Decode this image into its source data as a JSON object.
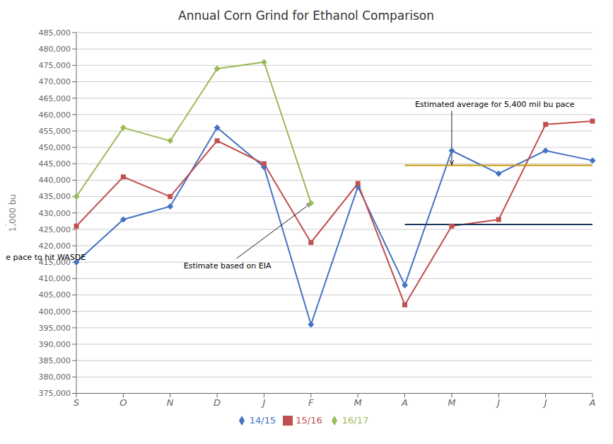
{
  "chart_data": {
    "type": "line",
    "title": "Annual Corn Grind for Ethanol Comparison",
    "y_label": "1,000 bu",
    "categories": [
      "S",
      "O",
      "N",
      "D",
      "J",
      "F",
      "M",
      "A",
      "M",
      "J",
      "J",
      "A"
    ],
    "series": [
      {
        "name": "14/15",
        "color": "#4472C4",
        "marker": "diamond",
        "values": [
          415000,
          428000,
          432000,
          456000,
          444000,
          396000,
          438000,
          408000,
          449000,
          442000,
          449000,
          446000
        ]
      },
      {
        "name": "15/16",
        "color": "#C0504D",
        "marker": "square",
        "values": [
          426000,
          441000,
          435000,
          452000,
          445000,
          421000,
          439000,
          402000,
          426000,
          428000,
          457000,
          458000
        ]
      },
      {
        "name": "16/17",
        "color": "#9BBB59",
        "marker": "diamond",
        "values": [
          435000,
          456000,
          452000,
          474000,
          476000,
          433000,
          null,
          null,
          null,
          null,
          null,
          null
        ]
      },
      {
        "color": "#C8960C",
        "marker": "none",
        "values": [
          null,
          null,
          null,
          null,
          null,
          null,
          null,
          444500,
          444500,
          444500,
          444500,
          444500
        ]
      },
      {
        "color": "#17375E",
        "marker": "none",
        "values": [
          null,
          null,
          null,
          null,
          null,
          null,
          null,
          426500,
          426500,
          426500,
          426500,
          426500
        ]
      }
    ],
    "annotations": [
      {
        "text": "Estimate based on EIA",
        "x": 5,
        "y": 433000
      },
      {
        "text": "Estimated average for 5,400 mil bu pace",
        "x": 8,
        "y": 444700
      },
      {
        "text": "Estimated average pace to hit WASDE",
        "x": 9.5,
        "y": 426500
      }
    ],
    "ylim": [
      375000,
      485000
    ],
    "yticks": [
      {
        "value": 375000,
        "label": "375,000"
      },
      {
        "value": 380000,
        "label": "380,000"
      },
      {
        "value": 385000,
        "label": "385,000"
      },
      {
        "value": 390000,
        "label": "390,000"
      },
      {
        "value": 395000,
        "label": "395,000"
      },
      {
        "value": 400000,
        "label": "400,000"
      },
      {
        "value": 405000,
        "label": "405,000"
      },
      {
        "value": 410000,
        "label": "410,000"
      },
      {
        "value": 415000,
        "label": "415,000"
      },
      {
        "value": 420000,
        "label": "420,000"
      },
      {
        "value": 425000,
        "label": "425,000"
      },
      {
        "value": 430000,
        "label": "430,000"
      },
      {
        "value": 435000,
        "label": "435,000"
      },
      {
        "value": 440000,
        "label": "440,000"
      },
      {
        "value": 445000,
        "label": "445,000"
      },
      {
        "value": 450000,
        "label": "450,000"
      },
      {
        "value": 455000,
        "label": "455,000"
      },
      {
        "value": 460000,
        "label": "460,000"
      },
      {
        "value": 465000,
        "label": "465,000"
      },
      {
        "value": 470000,
        "label": "470,000"
      },
      {
        "value": 475000,
        "label": "475,000"
      },
      {
        "value": 480000,
        "label": "480,000"
      },
      {
        "value": 485000,
        "label": "485,000"
      }
    ],
    "grid": true,
    "legend": "bottom"
  }
}
